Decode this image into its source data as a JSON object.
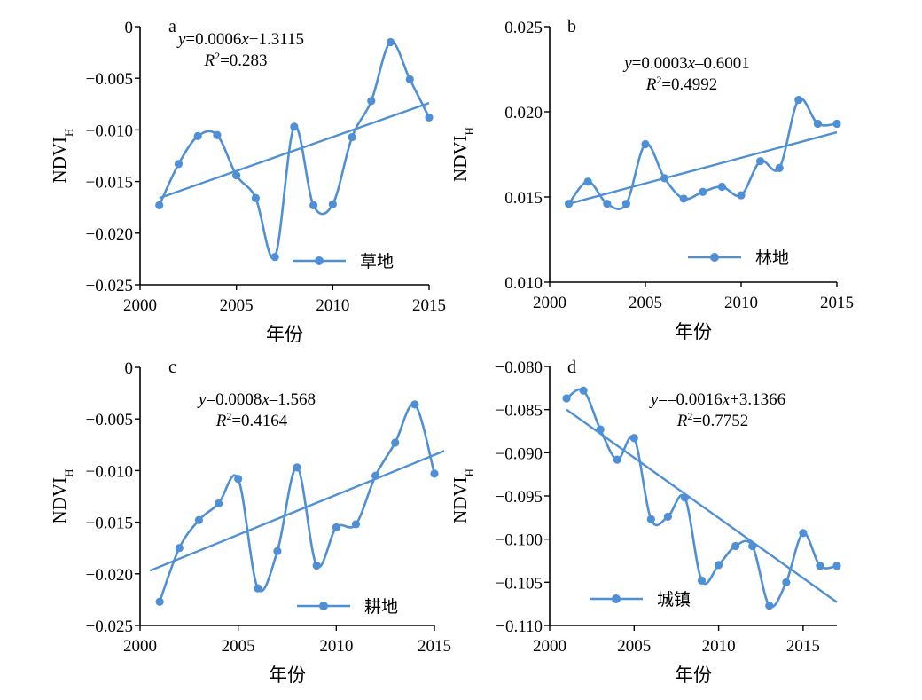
{
  "chart_data": [
    {
      "type": "line",
      "panel_label": "a",
      "legend": "草地",
      "equation": {
        "y": "y",
        "slope": "=0.0006",
        "x": "x",
        "intercept": "−1.3115",
        "r2_label": "R",
        "r2_value": "=0.283"
      },
      "xlabel": "年份",
      "ylabel": "NDVI",
      "ylabel_sub": "H",
      "xlim": [
        2000,
        2015
      ],
      "ylim": [
        -0.025,
        0
      ],
      "xticks": [
        2000,
        2005,
        2010,
        2015
      ],
      "xtick_labels": [
        "2000",
        "2005",
        "2010",
        "2015"
      ],
      "yticks": [
        0,
        -0.005,
        -0.01,
        -0.015,
        -0.02,
        -0.025
      ],
      "ytick_labels": [
        "0",
        "−0.005",
        "−0.010",
        "−0.015",
        "−0.020",
        "−0.025"
      ],
      "x": [
        2001,
        2002,
        2003,
        2004,
        2005,
        2006,
        2007,
        2008,
        2009,
        2010,
        2011,
        2012,
        2013,
        2014,
        2015
      ],
      "values": [
        -0.0173,
        -0.0133,
        -0.0106,
        -0.0105,
        -0.0144,
        -0.0166,
        -0.0223,
        -0.0097,
        -0.0173,
        -0.0172,
        -0.0107,
        -0.0072,
        -0.0015,
        -0.0051,
        -0.0088
      ],
      "trend": {
        "x0": 2001,
        "y0": -0.0166,
        "x1": 2015,
        "y1": -0.0074
      }
    },
    {
      "type": "line",
      "panel_label": "b",
      "legend": "林地",
      "equation": {
        "y": "y",
        "slope": "=0.0003",
        "x": "x",
        "intercept": "–0.6001",
        "r2_label": "R",
        "r2_value": "=0.4992"
      },
      "xlabel": "年份",
      "ylabel": "NDVI",
      "ylabel_sub": "H",
      "xlim": [
        2000,
        2015
      ],
      "ylim": [
        0.01,
        0.025
      ],
      "xticks": [
        2000,
        2005,
        2010,
        2015
      ],
      "xtick_labels": [
        "2000",
        "2005",
        "2010",
        "2015"
      ],
      "yticks": [
        0.025,
        0.02,
        0.015,
        0.01
      ],
      "ytick_labels": [
        "0.025",
        "0.020",
        "0.015",
        "0.010"
      ],
      "x": [
        2001,
        2002,
        2003,
        2004,
        2005,
        2006,
        2007,
        2008,
        2009,
        2010,
        2011,
        2012,
        2013,
        2014,
        2015
      ],
      "values": [
        0.0146,
        0.0159,
        0.0146,
        0.0146,
        0.0181,
        0.0161,
        0.0149,
        0.0153,
        0.0156,
        0.0151,
        0.0171,
        0.0167,
        0.0207,
        0.0193,
        0.0193
      ],
      "trend": {
        "x0": 2001,
        "y0": 0.0146,
        "x1": 2015,
        "y1": 0.0188
      }
    },
    {
      "type": "line",
      "panel_label": "c",
      "legend": "耕地",
      "equation": {
        "y": "y",
        "slope": "=0.0008",
        "x": "x",
        "intercept": "–1.568",
        "r2_label": "R",
        "r2_value": "=0.4164"
      },
      "xlabel": "年份",
      "ylabel": "NDVI",
      "ylabel_sub": "H",
      "xlim": [
        2000,
        2015
      ],
      "ylim": [
        -0.025,
        0
      ],
      "xticks": [
        2000,
        2005,
        2010,
        2015
      ],
      "xtick_labels": [
        "2000",
        "2005",
        "2010",
        "2015"
      ],
      "yticks": [
        0,
        -0.005,
        -0.01,
        -0.015,
        -0.02,
        -0.025
      ],
      "ytick_labels": [
        "0",
        "−0.005",
        "−0.010",
        "−0.015",
        "−0.020",
        "−0.025"
      ],
      "x": [
        2001,
        2002,
        2003,
        2004,
        2005,
        2006,
        2007,
        2008,
        2009,
        2010,
        2011,
        2012,
        2013,
        2014,
        2015
      ],
      "values": [
        -0.0227,
        -0.0175,
        -0.0148,
        -0.0132,
        -0.0108,
        -0.0214,
        -0.0178,
        -0.0097,
        -0.0192,
        -0.0155,
        -0.0152,
        -0.0105,
        -0.0073,
        -0.0036,
        -0.0103
      ],
      "trend": {
        "x0": 2000.5,
        "y0": -0.0197,
        "x1": 2015.5,
        "y1": -0.0081
      }
    },
    {
      "type": "line",
      "panel_label": "d",
      "legend": "城镇",
      "equation": {
        "y": "y",
        "slope": "=–0.0016",
        "x": "x",
        "intercept": "+3.1366",
        "r2_label": "R",
        "r2_value": "=0.7752"
      },
      "xlabel": "年份",
      "ylabel": "NDVI",
      "ylabel_sub": "H",
      "xlim": [
        2000,
        2017
      ],
      "ylim": [
        -0.11,
        -0.08
      ],
      "xticks": [
        2000,
        2005,
        2010,
        2015
      ],
      "xtick_labels": [
        "2000",
        "2005",
        "2010",
        "2015"
      ],
      "yticks": [
        -0.08,
        -0.085,
        -0.09,
        -0.095,
        -0.1,
        -0.105,
        -0.11
      ],
      "ytick_labels": [
        "−0.080",
        "−0.085",
        "−0.090",
        "−0.095",
        "−0.100",
        "−0.105",
        "−0.110"
      ],
      "x": [
        2001,
        2002,
        2003,
        2004,
        2005,
        2006,
        2007,
        2008,
        2009,
        2010,
        2011,
        2012,
        2013,
        2014,
        2015,
        2016,
        2017
      ],
      "values": [
        -0.0837,
        -0.0828,
        -0.0873,
        -0.0908,
        -0.0883,
        -0.0977,
        -0.0974,
        -0.0952,
        -0.1048,
        -0.103,
        -0.1008,
        -0.1008,
        -0.1077,
        -0.105,
        -0.0993,
        -0.1031,
        -0.1031
      ],
      "trend": {
        "x0": 2001,
        "y0": -0.085,
        "x1": 2017,
        "y1": -0.1073
      }
    }
  ]
}
